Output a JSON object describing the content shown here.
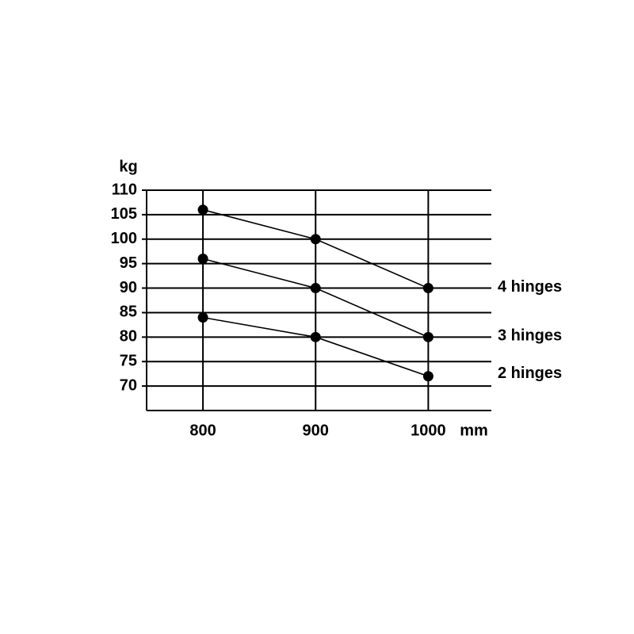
{
  "chart_data": {
    "type": "line",
    "y_label": "kg",
    "x_label": "mm",
    "x": [
      800,
      900,
      1000
    ],
    "xlim": [
      750,
      1056
    ],
    "xticks": [
      800,
      900,
      1000
    ],
    "ylim": [
      65,
      110
    ],
    "yticks": [
      70,
      75,
      80,
      85,
      90,
      95,
      100,
      105,
      110
    ],
    "grid": true,
    "series": [
      {
        "name": "4 hinges",
        "color": "#000000",
        "values": [
          106,
          100,
          90
        ]
      },
      {
        "name": "3 hinges",
        "color": "#000000",
        "values": [
          96,
          90,
          80
        ]
      },
      {
        "name": "2 hinges",
        "color": "#000000",
        "values": [
          84,
          80,
          72
        ]
      }
    ]
  }
}
